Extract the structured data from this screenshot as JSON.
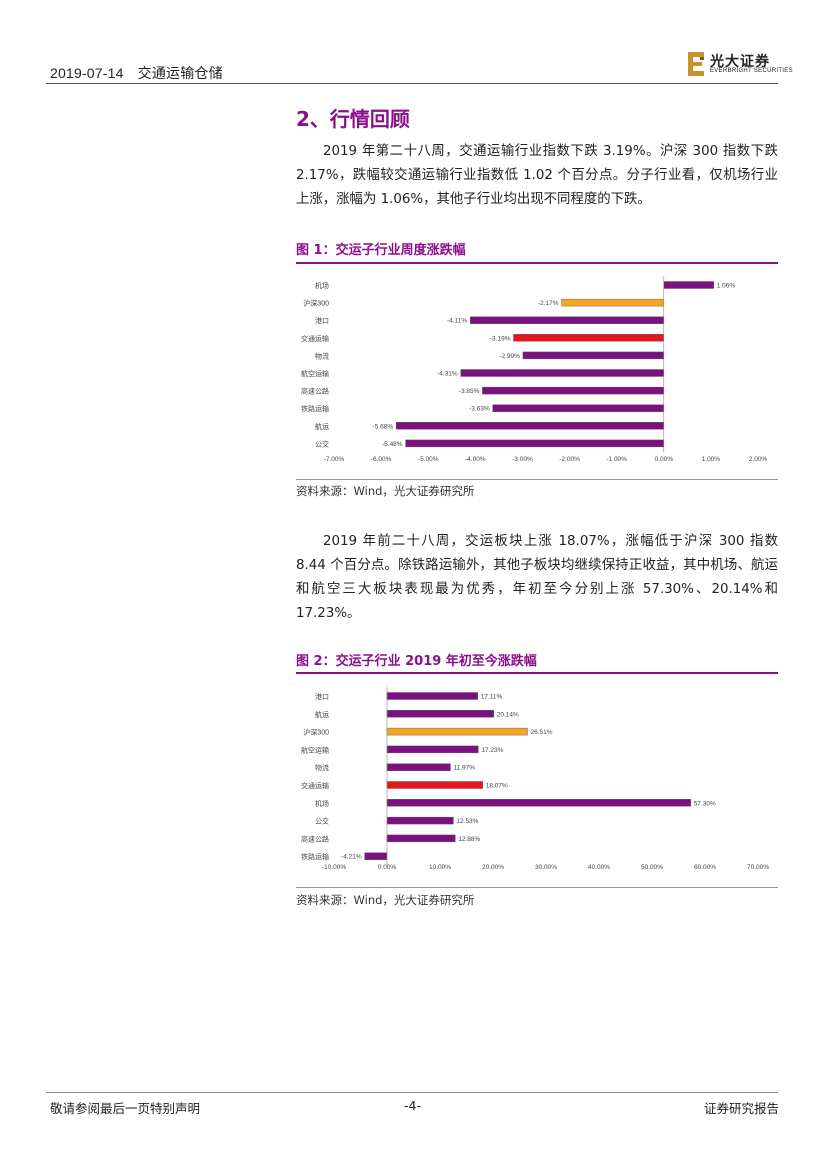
{
  "header": {
    "date": "2019-07-14",
    "topic": "交通运输仓储"
  },
  "logo": {
    "name_cn": "光大证券",
    "name_en": "EVERBRIGHT SECURITIES",
    "mark": "E"
  },
  "section": {
    "title": "2、行情回顾"
  },
  "paragraphs": [
    "2019 年第二十八周，交通运输行业指数下跌 3.19%。沪深 300 指数下跌 2.17%，跌幅较交通运输行业指数低 1.02 个百分点。分子行业看，仅机场行业上涨，涨幅为 1.06%，其他子行业均出现不同程度的下跌。",
    "2019 年前二十八周，交运板块上涨 18.07%，涨幅低于沪深 300 指数 8.44 个百分点。除铁路运输外，其他子板块均继续保持正收益，其中机场、航运和航空三大板块表现最为优秀，年初至今分别上涨 57.30%、20.14%和 17.23%。"
  ],
  "figures": [
    {
      "title": "图 1：交运子行业周度涨跌幅",
      "source": "资料来源：Wind，光大证券研究所"
    },
    {
      "title": "图 2：交运子行业 2019 年初至今涨跌幅",
      "source": "资料来源：Wind，光大证券研究所"
    }
  ],
  "footer": {
    "left": "敬请参阅最后一页特别声明",
    "page": "-4-",
    "right": "证券研究报告"
  },
  "colors": {
    "purple": "#7b1180",
    "orange": "#f7a623",
    "red": "#e5161d",
    "title": "#8b0f8b"
  },
  "chart_data": [
    {
      "type": "bar",
      "orientation": "horizontal",
      "categories": [
        "机场",
        "沪深300",
        "港口",
        "交通运输",
        "物流",
        "航空运输",
        "高速公路",
        "铁路运输",
        "航运",
        "公交"
      ],
      "values": [
        1.06,
        -2.17,
        -4.11,
        -3.19,
        -2.99,
        -4.31,
        -3.85,
        -3.63,
        -5.68,
        -5.48
      ],
      "data_labels": [
        "1.06%",
        "-2.17%",
        "-4.11%",
        "-3.19%",
        "-2.99%",
        "-4.31%",
        "-3.85%",
        "-3.63%",
        "-5.68%",
        "-5.48%"
      ],
      "bar_colors": [
        "#7b1180",
        "#f7a623",
        "#7b1180",
        "#e5161d",
        "#7b1180",
        "#7b1180",
        "#7b1180",
        "#7b1180",
        "#7b1180",
        "#7b1180"
      ],
      "xlim": [
        -7,
        2
      ],
      "xticks": [
        -7,
        -6,
        -5,
        -4,
        -3,
        -2,
        -1,
        0,
        1,
        2
      ],
      "xtick_labels": [
        "-7.00%",
        "-6.00%",
        "-5.00%",
        "-4.00%",
        "-3.00%",
        "-2.00%",
        "-1.00%",
        "0.00%",
        "1.00%",
        "2.00%"
      ],
      "grid": false,
      "legend": false
    },
    {
      "type": "bar",
      "orientation": "horizontal",
      "categories": [
        "港口",
        "航运",
        "沪深300",
        "航空运输",
        "物流",
        "交通运输",
        "机场",
        "公交",
        "高速公路",
        "铁路运输"
      ],
      "values": [
        17.11,
        20.14,
        26.51,
        17.23,
        11.97,
        18.07,
        57.3,
        12.53,
        12.88,
        -4.21
      ],
      "data_labels": [
        "17.11%",
        "20.14%",
        "26.51%",
        "17.23%",
        "11.97%",
        "18.07%",
        "57.30%",
        "12.53%",
        "12.88%",
        "-4.21%"
      ],
      "bar_colors": [
        "#7b1180",
        "#7b1180",
        "#f7a623",
        "#7b1180",
        "#7b1180",
        "#e5161d",
        "#7b1180",
        "#7b1180",
        "#7b1180",
        "#7b1180"
      ],
      "xlim": [
        -10,
        70
      ],
      "xticks": [
        -10,
        0,
        10,
        20,
        30,
        40,
        50,
        60,
        70
      ],
      "xtick_labels": [
        "-10.00%",
        "0.00%",
        "10.00%",
        "20.00%",
        "30.00%",
        "40.00%",
        "50.00%",
        "60.00%",
        "70.00%"
      ],
      "grid": false,
      "legend": false
    }
  ]
}
